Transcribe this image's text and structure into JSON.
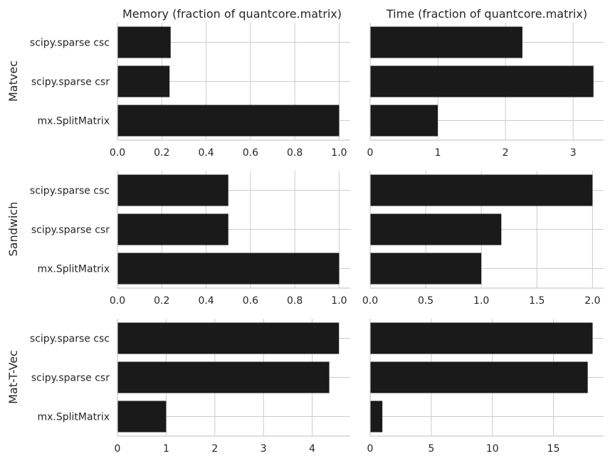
{
  "chart_data": {
    "type": "bar",
    "orientation": "horizontal",
    "column_titles": [
      "Memory (fraction of quantcore.matrix)",
      "Time (fraction of quantcore.matrix)"
    ],
    "row_labels": [
      "Matvec",
      "Sandwich",
      "Mat-T-Vec"
    ],
    "categories": [
      "scipy.sparse csc",
      "scipy.sparse csr",
      "mx.SplitMatrix"
    ],
    "bar_color": "#1a1a1a",
    "grid": true,
    "panels": [
      {
        "row": "Matvec",
        "metric": "Memory",
        "values": [
          0.24,
          0.235,
          1.0
        ],
        "xlim": [
          0,
          1.05
        ],
        "xticks": [
          0.0,
          0.2,
          0.4,
          0.6,
          0.8,
          1.0
        ],
        "xtick_labels": [
          "0.0",
          "0.2",
          "0.4",
          "0.6",
          "0.8",
          "1.0"
        ]
      },
      {
        "row": "Matvec",
        "metric": "Time",
        "values": [
          2.25,
          3.3,
          1.0
        ],
        "xlim": [
          0,
          3.45
        ],
        "xticks": [
          0,
          1,
          2,
          3
        ],
        "xtick_labels": [
          "0",
          "1",
          "2",
          "3"
        ]
      },
      {
        "row": "Sandwich",
        "metric": "Memory",
        "values": [
          0.5,
          0.5,
          1.0
        ],
        "xlim": [
          0,
          1.05
        ],
        "xticks": [
          0.0,
          0.2,
          0.4,
          0.6,
          0.8,
          1.0
        ],
        "xtick_labels": [
          "0.0",
          "0.2",
          "0.4",
          "0.6",
          "0.8",
          "1.0"
        ]
      },
      {
        "row": "Sandwich",
        "metric": "Time",
        "values": [
          2.0,
          1.18,
          1.0
        ],
        "xlim": [
          0,
          2.1
        ],
        "xticks": [
          0.0,
          0.5,
          1.0,
          1.5,
          2.0
        ],
        "xtick_labels": [
          "0.0",
          "0.5",
          "1.0",
          "1.5",
          "2.0"
        ]
      },
      {
        "row": "Mat-T-Vec",
        "metric": "Memory",
        "values": [
          4.55,
          4.35,
          1.0
        ],
        "xlim": [
          0,
          4.78
        ],
        "xticks": [
          0,
          1,
          2,
          3,
          4
        ],
        "xtick_labels": [
          "0",
          "1",
          "2",
          "3",
          "4"
        ]
      },
      {
        "row": "Mat-T-Vec",
        "metric": "Time",
        "values": [
          18.2,
          17.8,
          1.0
        ],
        "xlim": [
          0,
          19.1
        ],
        "xticks": [
          0,
          5,
          10,
          15
        ],
        "xtick_labels": [
          "0",
          "5",
          "10",
          "15"
        ]
      }
    ]
  }
}
